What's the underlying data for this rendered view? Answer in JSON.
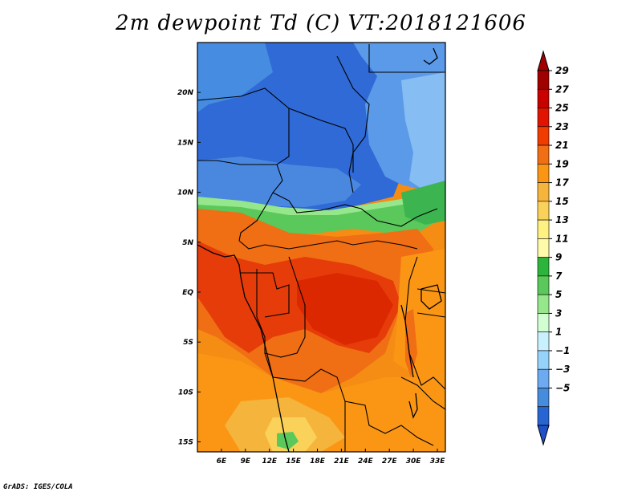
{
  "title": "2m dewpoint Td (C) VT:2018121606",
  "credit": "GrADS: IGES/COLA",
  "map": {
    "lon_range": [
      3,
      34
    ],
    "lat_range": [
      -16,
      25
    ],
    "x_ticks": [
      {
        "value": 6,
        "label": "6E"
      },
      {
        "value": 9,
        "label": "9E"
      },
      {
        "value": 12,
        "label": "12E"
      },
      {
        "value": 15,
        "label": "15E"
      },
      {
        "value": 18,
        "label": "18E"
      },
      {
        "value": 21,
        "label": "21E"
      },
      {
        "value": 24,
        "label": "24E"
      },
      {
        "value": 27,
        "label": "27E"
      },
      {
        "value": 30,
        "label": "30E"
      },
      {
        "value": 33,
        "label": "33E"
      }
    ],
    "y_ticks": [
      {
        "value": 20,
        "label": "20N"
      },
      {
        "value": 15,
        "label": "15N"
      },
      {
        "value": 10,
        "label": "10N"
      },
      {
        "value": 5,
        "label": "5N"
      },
      {
        "value": 0,
        "label": "EQ"
      },
      {
        "value": -5,
        "label": "5S"
      },
      {
        "value": -10,
        "label": "10S"
      },
      {
        "value": -15,
        "label": "15S"
      }
    ]
  },
  "colorbar": {
    "labels": [
      "29",
      "27",
      "25",
      "23",
      "21",
      "19",
      "17",
      "15",
      "13",
      "11",
      "9",
      "7",
      "5",
      "3",
      "1",
      "−1",
      "−3",
      "−5"
    ],
    "colors": [
      "#a00000",
      "#c80000",
      "#e11400",
      "#f03c00",
      "#f06e14",
      "#fa9614",
      "#f5b43c",
      "#fad25a",
      "#fff082",
      "#fffaaa",
      "#2db43c",
      "#5ac85a",
      "#96e68c",
      "#d2ffd2",
      "#c8f0ff",
      "#96d2fa",
      "#6eaaf0",
      "#468cdc",
      "#2864d2"
    ],
    "top_arrow_color": "#a00000",
    "bottom_arrow_color": "#1e50c8"
  }
}
